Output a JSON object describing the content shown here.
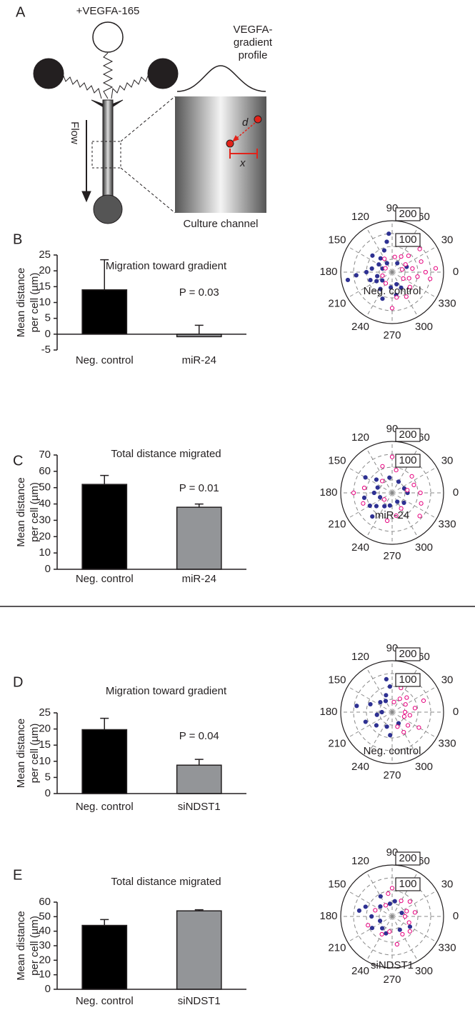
{
  "panel_labels": [
    "A",
    "B",
    "C",
    "D",
    "E"
  ],
  "diagram": {
    "stimulus": "+VEGFA-165",
    "profile_label": [
      "VEGFA-",
      "gradient",
      "profile"
    ],
    "flow": "Flow",
    "distance": "d",
    "displacement": "x",
    "channel": "Culture channel"
  },
  "chart_data": [
    {
      "type": "bar",
      "title": "Migration toward gradient",
      "ylabel": [
        "Mean distance",
        "per cell (µm)"
      ],
      "categories": [
        "Neg. control",
        "miR-24"
      ],
      "values": [
        14,
        -0.8
      ],
      "errors": [
        9.5,
        2.8
      ],
      "colors": [
        "#000000",
        "#939598"
      ],
      "ylim": [
        -5,
        25
      ],
      "yticks": [
        -5,
        0,
        5,
        10,
        15,
        20,
        25
      ],
      "annotation": "P = 0.03"
    },
    {
      "type": "polar_scatter",
      "rlim": [
        0,
        200
      ],
      "rticks": [
        100,
        200
      ],
      "rgrid": [
        50,
        100,
        150
      ],
      "thetaticks": [
        0,
        30,
        60,
        90,
        120,
        150,
        180,
        210,
        240,
        270,
        300,
        330
      ],
      "annotation": "Neg. control",
      "series": [
        {
          "color": "#2e3192",
          "filled": true,
          "theta": [
            95,
            100,
            110,
            130,
            150,
            170,
            180,
            185,
            195,
            200,
            210,
            220,
            235,
            250,
            265,
            280,
            290,
            160,
            140,
            120,
            300,
            20,
            60,
            190
          ],
          "r": [
            150,
            120,
            90,
            70,
            60,
            80,
            100,
            140,
            60,
            90,
            70,
            50,
            80,
            110,
            60,
            90,
            50,
            40,
            100,
            40,
            70,
            60,
            40,
            175
          ]
        },
        {
          "color": "#e6007e",
          "filled": false,
          "theta": [
            10,
            20,
            30,
            45,
            350,
            340,
            330,
            0,
            15,
            60,
            80,
            280,
            270,
            300,
            320,
            350,
            5,
            40,
            200,
            240,
            120,
            150
          ],
          "r": [
            80,
            120,
            60,
            90,
            100,
            70,
            50,
            130,
            40,
            70,
            60,
            100,
            140,
            110,
            90,
            150,
            170,
            140,
            40,
            50,
            60,
            30
          ]
        }
      ]
    },
    {
      "type": "bar",
      "title": "Total distance migrated",
      "ylabel": [
        "Mean distance",
        "per cell (µm)"
      ],
      "categories": [
        "Neg. control",
        "miR-24"
      ],
      "values": [
        52,
        38
      ],
      "errors": [
        5.5,
        2
      ],
      "colors": [
        "#000000",
        "#939598"
      ],
      "ylim": [
        0,
        70
      ],
      "yticks": [
        0,
        10,
        20,
        30,
        40,
        50,
        60,
        70
      ],
      "annotation": "P = 0.01"
    },
    {
      "type": "polar_scatter",
      "rlim": [
        0,
        200
      ],
      "rticks": [
        100,
        200
      ],
      "rgrid": [
        50,
        100,
        150
      ],
      "thetaticks": [
        0,
        30,
        60,
        90,
        120,
        150,
        180,
        210,
        240,
        270,
        300,
        330
      ],
      "annotation": "miR-24",
      "series": [
        {
          "color": "#2e3192",
          "filled": true,
          "theta": [
            100,
            140,
            160,
            180,
            200,
            220,
            240,
            260,
            300,
            20,
            60,
            150,
            190,
            210,
            230,
            0,
            320
          ],
          "r": [
            60,
            80,
            60,
            70,
            50,
            80,
            60,
            50,
            40,
            50,
            50,
            120,
            110,
            100,
            120,
            60,
            60
          ]
        },
        {
          "color": "#e6007e",
          "filled": false,
          "theta": [
            80,
            90,
            110,
            130,
            170,
            180,
            200,
            260,
            280,
            300,
            320,
            340,
            0,
            20,
            40,
            60,
            10,
            220
          ],
          "r": [
            90,
            140,
            110,
            60,
            110,
            150,
            120,
            110,
            90,
            70,
            140,
            120,
            110,
            90,
            100,
            130,
            60,
            40
          ]
        }
      ]
    },
    {
      "type": "bar",
      "title": "Migration toward gradient",
      "ylabel": [
        "Mean distance",
        "per cell (µm)"
      ],
      "categories": [
        "Neg. control",
        "siNDST1"
      ],
      "values": [
        19.8,
        8.8
      ],
      "errors": [
        3.5,
        1.8
      ],
      "colors": [
        "#000000",
        "#939598"
      ],
      "ylim": [
        0,
        25
      ],
      "yticks": [
        0,
        5,
        10,
        15,
        20,
        25
      ],
      "annotation": "P = 0.04"
    },
    {
      "type": "polar_scatter",
      "rlim": [
        0,
        200
      ],
      "rticks": [
        100,
        200
      ],
      "rgrid": [
        50,
        100,
        150
      ],
      "thetaticks": [
        0,
        30,
        60,
        90,
        120,
        150,
        180,
        210,
        240,
        270,
        300,
        330
      ],
      "annotation": "Neg. control",
      "series": [
        {
          "color": "#2e3192",
          "filled": true,
          "theta": [
            100,
            95,
            110,
            140,
            160,
            170,
            190,
            200,
            220,
            250,
            265,
            120,
            180,
            300
          ],
          "r": [
            130,
            100,
            70,
            60,
            90,
            140,
            60,
            110,
            80,
            60,
            90,
            50,
            40,
            50
          ]
        },
        {
          "color": "#e6007e",
          "filled": false,
          "theta": [
            45,
            60,
            30,
            10,
            340,
            320,
            300,
            330,
            20,
            70,
            80,
            0,
            290,
            350
          ],
          "r": [
            80,
            60,
            60,
            90,
            50,
            80,
            90,
            120,
            130,
            100,
            40,
            50,
            60,
            70
          ]
        }
      ]
    },
    {
      "type": "bar",
      "title": "Total distance migrated",
      "ylabel": [
        "Mean distance",
        "per cell (µm)"
      ],
      "categories": [
        "Neg. control",
        "siNDST1"
      ],
      "values": [
        44,
        54
      ],
      "errors": [
        4,
        0.8
      ],
      "colors": [
        "#000000",
        "#939598"
      ],
      "ylim": [
        0,
        60
      ],
      "yticks": [
        0,
        10,
        20,
        30,
        40,
        50,
        60
      ]
    },
    {
      "type": "polar_scatter",
      "rlim": [
        0,
        200
      ],
      "rticks": [
        100,
        200
      ],
      "rgrid": [
        50,
        100,
        150
      ],
      "thetaticks": [
        0,
        30,
        60,
        90,
        120,
        150,
        180,
        210,
        240,
        270,
        300,
        330
      ],
      "annotation": "siNDST1",
      "series": [
        {
          "color": "#2e3192",
          "filled": true,
          "theta": [
            120,
            140,
            160,
            180,
            200,
            210,
            230,
            250,
            100,
            80,
            300,
            330,
            20,
            170
          ],
          "r": [
            90,
            60,
            110,
            80,
            50,
            90,
            60,
            70,
            50,
            60,
            60,
            80,
            40,
            130
          ]
        },
        {
          "color": "#e6007e",
          "filled": false,
          "theta": [
            60,
            40,
            20,
            0,
            340,
            320,
            300,
            280,
            260,
            240,
            100,
            90,
            120,
            160,
            200,
            10
          ],
          "r": [
            70,
            90,
            60,
            50,
            70,
            90,
            80,
            110,
            60,
            80,
            90,
            110,
            50,
            70,
            100,
            90
          ]
        }
      ]
    }
  ]
}
